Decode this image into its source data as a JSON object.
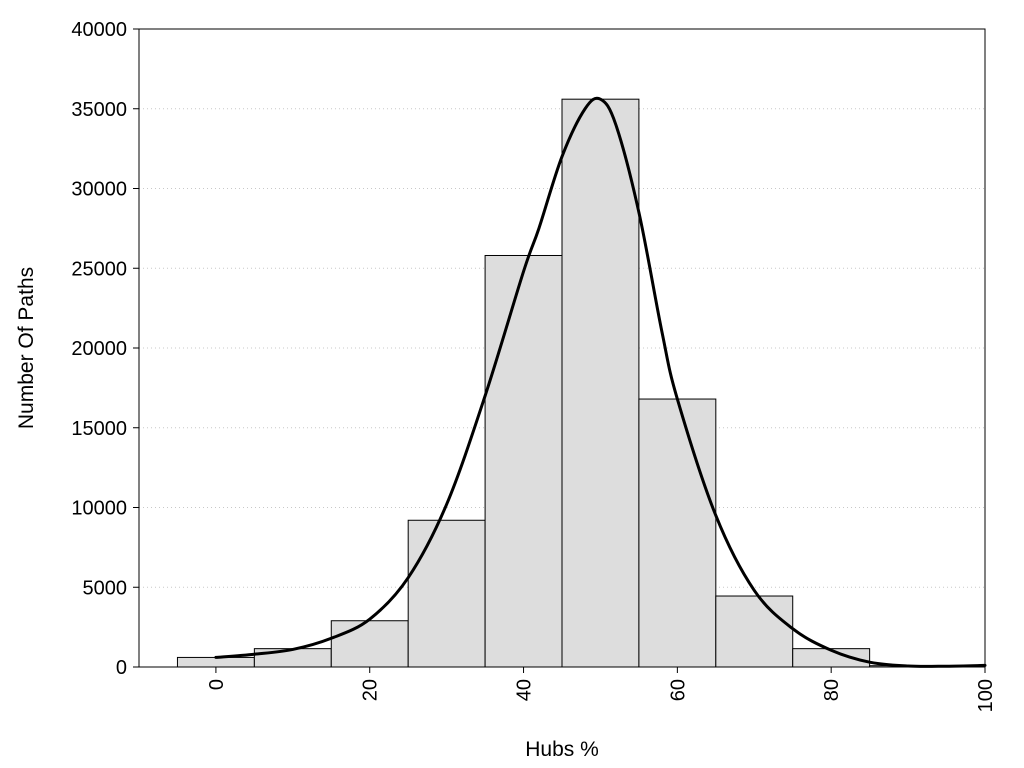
{
  "chart_data": {
    "type": "bar",
    "title": "",
    "xlabel": "Hubs %",
    "ylabel": "Number Of Paths",
    "xlim": [
      -10,
      100
    ],
    "ylim": [
      0,
      40000
    ],
    "x_ticks": [
      0,
      20,
      40,
      60,
      80,
      100
    ],
    "y_ticks": [
      0,
      5000,
      10000,
      15000,
      20000,
      25000,
      30000,
      35000,
      40000
    ],
    "grid": "horizontal dotted",
    "bar_color": "#dddddd",
    "bar_edge_color": "#000000",
    "curve_color": "#000000",
    "bin_width": 10,
    "categories": [
      0,
      10,
      20,
      30,
      40,
      50,
      60,
      70,
      80,
      90
    ],
    "values": [
      600,
      1150,
      2900,
      9200,
      25800,
      35600,
      16800,
      4450,
      1150,
      80
    ],
    "fit_curve": {
      "x": [
        0,
        5,
        10,
        15,
        20,
        25,
        30,
        35,
        40,
        42,
        45,
        48,
        50,
        52,
        55,
        58,
        60,
        65,
        70,
        75,
        80,
        85,
        90,
        95,
        100
      ],
      "y": [
        600,
        800,
        1100,
        1800,
        3000,
        5600,
        10200,
        17000,
        24800,
        27500,
        32000,
        35000,
        35600,
        34000,
        28500,
        21000,
        16800,
        9500,
        4800,
        2400,
        1050,
        300,
        60,
        50,
        100
      ]
    }
  }
}
